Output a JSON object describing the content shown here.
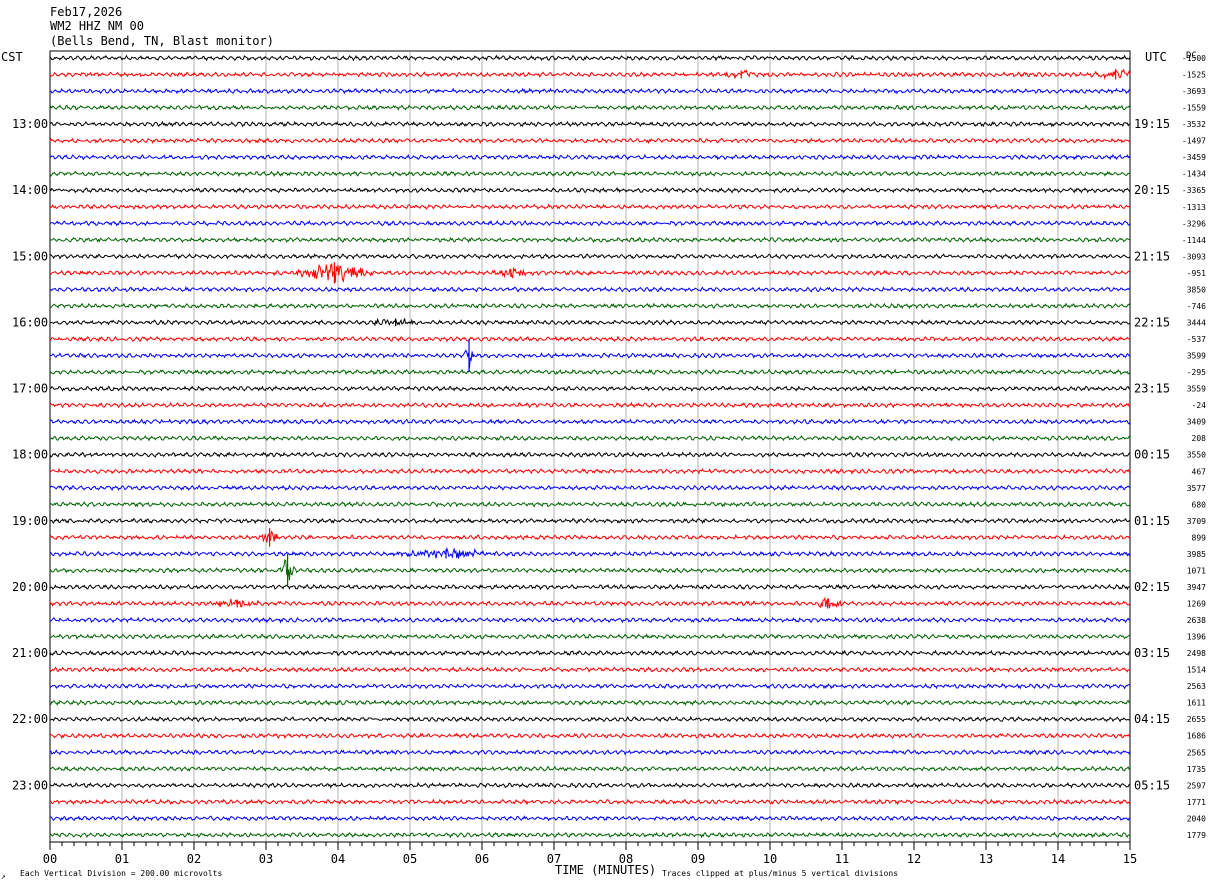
{
  "header": {
    "date": "Feb17,2026",
    "station": "WM2 HHZ NM 00",
    "location": "(Bells Bend, TN, Blast monitor)"
  },
  "labels": {
    "left_tz": "CST",
    "right_tz": "UTC",
    "dc_header": "DC",
    "xlabel": "TIME (MINUTES)",
    "footer_left": "Each Vertical Division =  200.00 microvolts",
    "footer_right": "Traces clipped at plus/minus 5 vertical divisions",
    "footer_glyph": "↗"
  },
  "colors": {
    "trace_cycle": [
      "#000000",
      "#ff0000",
      "#0000ff",
      "#006400"
    ],
    "grid": "#808080"
  },
  "chart_data": {
    "type": "line",
    "title": "Feb17,2026 WM2 HHZ NM 00 (Bells Bend, TN, Blast monitor)",
    "xlabel": "TIME (MINUTES)",
    "xlim": [
      0,
      15
    ],
    "x_ticks": [
      "00",
      "01",
      "02",
      "03",
      "04",
      "05",
      "06",
      "07",
      "08",
      "09",
      "10",
      "11",
      "12",
      "13",
      "14",
      "15"
    ],
    "trace_count": 48,
    "trace_minutes": 15,
    "amplitude_scale": "Each Vertical Division =  200.00 microvolts",
    "clip_note": "Traces clipped at plus/minus 5 vertical divisions",
    "left_time_labels": [
      {
        "trace": 4,
        "label": "13:00"
      },
      {
        "trace": 8,
        "label": "14:00"
      },
      {
        "trace": 12,
        "label": "15:00"
      },
      {
        "trace": 16,
        "label": "16:00"
      },
      {
        "trace": 20,
        "label": "17:00"
      },
      {
        "trace": 24,
        "label": "18:00"
      },
      {
        "trace": 28,
        "label": "19:00"
      },
      {
        "trace": 32,
        "label": "20:00"
      },
      {
        "trace": 36,
        "label": "21:00"
      },
      {
        "trace": 40,
        "label": "22:00"
      },
      {
        "trace": 44,
        "label": "23:00"
      }
    ],
    "right_time_labels": [
      {
        "trace": 4,
        "label": "19:15"
      },
      {
        "trace": 8,
        "label": "20:15"
      },
      {
        "trace": 12,
        "label": "21:15"
      },
      {
        "trace": 16,
        "label": "22:15"
      },
      {
        "trace": 20,
        "label": "23:15"
      },
      {
        "trace": 24,
        "label": "00:15"
      },
      {
        "trace": 28,
        "label": "01:15"
      },
      {
        "trace": 32,
        "label": "02:15"
      },
      {
        "trace": 36,
        "label": "03:15"
      },
      {
        "trace": 40,
        "label": "04:15"
      },
      {
        "trace": 44,
        "label": "05:15"
      }
    ],
    "dc_offsets": [
      "-1500",
      "-1525",
      "-3693",
      "-1559",
      "-3532",
      "-1497",
      "-3459",
      "-1434",
      "-3365",
      "-1313",
      "-3296",
      "-1144",
      "-3093",
      "-951",
      "3850",
      "-746",
      "3444",
      "-537",
      "3599",
      "-295",
      "3559",
      "-24",
      "3409",
      "208",
      "3550",
      "467",
      "3577",
      "680",
      "3709",
      "899",
      "3985",
      "1071",
      "3947",
      "1269",
      "2638",
      "1396",
      "2498",
      "1514",
      "2563",
      "1611",
      "2655",
      "1686",
      "2565",
      "1735",
      "2597",
      "1771",
      "2040",
      "1779"
    ],
    "events": [
      {
        "trace": 13,
        "minute": 3.95,
        "amplitude_div": 3.2,
        "duration_min": 0.6
      },
      {
        "trace": 13,
        "minute": 6.4,
        "amplitude_div": 1.2,
        "duration_min": 0.4
      },
      {
        "trace": 18,
        "minute": 5.82,
        "amplitude_div": 5,
        "duration_min": 0.08
      },
      {
        "trace": 29,
        "minute": 3.05,
        "amplitude_div": 2.8,
        "duration_min": 0.15
      },
      {
        "trace": 30,
        "minute": 5.5,
        "amplitude_div": 1.4,
        "duration_min": 0.8
      },
      {
        "trace": 31,
        "minute": 3.3,
        "amplitude_div": 5,
        "duration_min": 0.12
      },
      {
        "trace": 33,
        "minute": 2.6,
        "amplitude_div": 1.2,
        "duration_min": 0.4
      },
      {
        "trace": 33,
        "minute": 10.8,
        "amplitude_div": 1.5,
        "duration_min": 0.3
      },
      {
        "trace": 1,
        "minute": 14.8,
        "amplitude_div": 1.5,
        "duration_min": 0.5
      },
      {
        "trace": 1,
        "minute": 9.6,
        "amplitude_div": 1.2,
        "duration_min": 0.3
      },
      {
        "trace": 16,
        "minute": 4.8,
        "amplitude_div": 1.1,
        "duration_min": 0.4
      }
    ]
  }
}
